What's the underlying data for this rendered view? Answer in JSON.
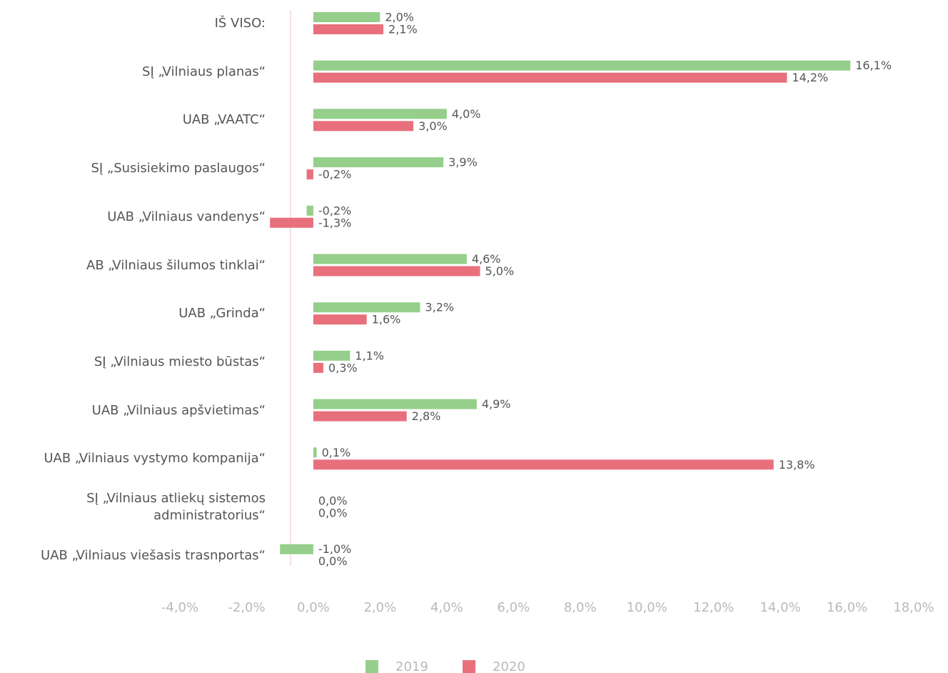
{
  "chart_data": {
    "type": "barh",
    "categories": [
      "IŠ VISO:",
      "SĮ „Vilniaus planas“",
      "UAB „VAATC“",
      "SĮ „Susisiekimo paslaugos“",
      "UAB „Vilniaus vandenys“",
      "AB „Vilniaus šilumos tinklai“",
      "UAB „Grinda“",
      "SĮ „Vilniaus miesto būstas“",
      "UAB „Vilniaus apšvietimas“",
      "UAB „Vilniaus vystymo kompanija“",
      "SĮ „Vilniaus atliekų sistemos administratorius“",
      "UAB „Vilniaus viešasis trasnportas“"
    ],
    "series": [
      {
        "name": "2019",
        "color": "#95cf8b",
        "values": [
          2.0,
          16.1,
          4.0,
          3.9,
          -0.2,
          4.6,
          3.2,
          1.1,
          4.9,
          0.1,
          0.0,
          -1.0
        ],
        "value_labels": [
          "2,0%",
          "16,1%",
          "4,0%",
          "3,9%",
          "-0,2%",
          "4,6%",
          "3,2%",
          "1,1%",
          "4,9%",
          "0,1%",
          "0,0%",
          "-1,0%"
        ]
      },
      {
        "name": "2020",
        "color": "#e8707c",
        "values": [
          2.1,
          14.2,
          3.0,
          -0.2,
          -1.3,
          5.0,
          1.6,
          0.3,
          2.8,
          13.8,
          0.0,
          0.0
        ],
        "value_labels": [
          "2,1%",
          "14,2%",
          "3,0%",
          "-0,2%",
          "-1,3%",
          "5,0%",
          "1,6%",
          "0,3%",
          "2,8%",
          "13,8%",
          "0,0%",
          "0,0%"
        ]
      }
    ],
    "xlim": [
      -4,
      18
    ],
    "xticks": [
      {
        "value": -4,
        "label": "-4,0%"
      },
      {
        "value": -2,
        "label": "-2,0%"
      },
      {
        "value": 0,
        "label": "0,0%"
      },
      {
        "value": 2,
        "label": "2,0%"
      },
      {
        "value": 4,
        "label": "4,0%"
      },
      {
        "value": 6,
        "label": "6,0%"
      },
      {
        "value": 8,
        "label": "8,0%"
      },
      {
        "value": 10,
        "label": "10,0%"
      },
      {
        "value": 12,
        "label": "12,0%"
      },
      {
        "value": 14,
        "label": "14,0%"
      },
      {
        "value": 16,
        "label": "16,0%"
      },
      {
        "value": 18,
        "label": "18,0%"
      }
    ],
    "legend": "bottom",
    "grid": false
  }
}
